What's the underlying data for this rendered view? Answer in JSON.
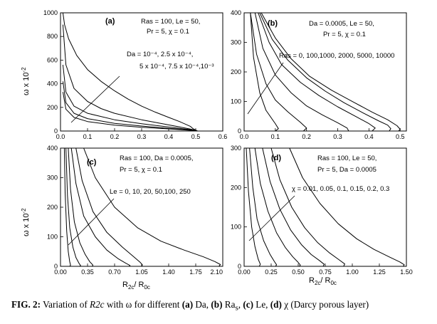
{
  "figure": {
    "caption_prefix": "FIG. 2:",
    "caption_text_1": "Variation of",
    "caption_var": "R2c",
    "caption_text_2": "with",
    "caption_omega": "ω",
    "caption_text_3": "for different",
    "caption_a": "(a)",
    "caption_a_txt": "Da,",
    "caption_b": "(b)",
    "caption_b_txt": "Ra",
    "caption_b_sub": "s",
    "caption_c": "(c)",
    "caption_c_txt": "Le,",
    "caption_d": "(d)",
    "caption_d_txt": "χ (Darcy porous layer)"
  },
  "axis_labels": {
    "ylabel_left": "ω x 10",
    "ylabel_exp": "-2",
    "xlabel": "R",
    "xlabel_sub1": "2c",
    "xlabel_mid": "/ R",
    "xlabel_sub2": "0c"
  },
  "chart_data": [
    {
      "type": "line",
      "panel": "(a)",
      "xlim": [
        0,
        0.6
      ],
      "ylim": [
        0,
        1000
      ],
      "xticks": [
        "0.0",
        "0.1",
        "0.2",
        "0.3",
        "0.4",
        "0.5",
        "0.6"
      ],
      "yticks": [
        "0",
        "200",
        "400",
        "600",
        "800",
        "1000"
      ],
      "params_line1": "Ras = 100, Le = 50,",
      "params_line2": "Pr = 5, χ = 0.1",
      "legend_line1": "Da = 10⁻⁴, 2.5 x 10⁻⁴,",
      "legend_line2": "5 x 10⁻⁴, 7.5 x 10⁻⁴,10⁻³",
      "series": [
        {
          "x": [
            0.009,
            0.015,
            0.03,
            0.06,
            0.1,
            0.15,
            0.2,
            0.25,
            0.3,
            0.35,
            0.4,
            0.44,
            0.48,
            0.49,
            0.5,
            0.505,
            0.5
          ],
          "y": [
            1000,
            900,
            780,
            640,
            520,
            420,
            340,
            270,
            210,
            160,
            115,
            80,
            40,
            20,
            8,
            2,
            0
          ]
        },
        {
          "x": [
            0.009,
            0.02,
            0.05,
            0.1,
            0.15,
            0.2,
            0.3,
            0.4,
            0.45,
            0.48,
            0.5,
            0.505,
            0.5
          ],
          "y": [
            900,
            560,
            360,
            250,
            190,
            150,
            95,
            52,
            30,
            16,
            6,
            2,
            0
          ]
        },
        {
          "x": [
            0.009,
            0.02,
            0.05,
            0.1,
            0.2,
            0.3,
            0.4,
            0.45,
            0.48,
            0.5,
            0.505,
            0.5
          ],
          "y": [
            560,
            330,
            210,
            150,
            95,
            62,
            34,
            20,
            12,
            5,
            2,
            0
          ]
        },
        {
          "x": [
            0.009,
            0.02,
            0.05,
            0.1,
            0.2,
            0.3,
            0.4,
            0.45,
            0.48,
            0.5,
            0.505,
            0.5
          ],
          "y": [
            420,
            240,
            150,
            105,
            65,
            42,
            23,
            14,
            8,
            4,
            1,
            0
          ]
        },
        {
          "x": [
            0.009,
            0.02,
            0.05,
            0.1,
            0.2,
            0.3,
            0.4,
            0.45,
            0.48,
            0.5,
            0.505,
            0.5
          ],
          "y": [
            330,
            185,
            115,
            80,
            50,
            32,
            18,
            11,
            6,
            3,
            1,
            0
          ]
        }
      ]
    },
    {
      "type": "line",
      "panel": "(b)",
      "xlim": [
        0,
        0.52
      ],
      "ylim": [
        0,
        400
      ],
      "xticks": [
        "0.0",
        "0.1",
        "0.2",
        "0.3",
        "0.4",
        "0.5"
      ],
      "yticks": [
        "0",
        "100",
        "200",
        "300",
        "400"
      ],
      "params_line1": "Da = 0.0005, Le = 50,",
      "params_line2": "Pr = 5, χ = 0.1",
      "legend_line1": "Ras = 0, 100,1000, 2000, 5000, 10000",
      "series": [
        {
          "x": [
            0.02,
            0.03,
            0.05,
            0.07,
            0.1,
            0.11,
            0.1
          ],
          "y": [
            400,
            250,
            130,
            70,
            25,
            8,
            0
          ]
        },
        {
          "x": [
            0.02,
            0.04,
            0.07,
            0.1,
            0.14,
            0.18,
            0.2,
            0.19
          ],
          "y": [
            400,
            260,
            160,
            105,
            65,
            30,
            10,
            0
          ]
        },
        {
          "x": [
            0.035,
            0.06,
            0.1,
            0.15,
            0.2,
            0.25,
            0.3,
            0.33,
            0.335
          ],
          "y": [
            400,
            280,
            190,
            130,
            85,
            55,
            28,
            10,
            0
          ]
        },
        {
          "x": [
            0.045,
            0.08,
            0.12,
            0.18,
            0.24,
            0.3,
            0.36,
            0.4,
            0.42,
            0.41
          ],
          "y": [
            400,
            300,
            225,
            165,
            120,
            82,
            48,
            25,
            10,
            0
          ]
        },
        {
          "x": [
            0.05,
            0.09,
            0.14,
            0.2,
            0.26,
            0.32,
            0.38,
            0.43,
            0.46,
            0.47,
            0.465
          ],
          "y": [
            400,
            310,
            240,
            180,
            135,
            96,
            62,
            35,
            20,
            8,
            0
          ]
        },
        {
          "x": [
            0.055,
            0.1,
            0.15,
            0.21,
            0.28,
            0.35,
            0.41,
            0.46,
            0.49,
            0.5,
            0.495
          ],
          "y": [
            400,
            315,
            245,
            185,
            138,
            98,
            64,
            38,
            18,
            6,
            0
          ]
        }
      ]
    },
    {
      "type": "line",
      "panel": "(c)",
      "xlim": [
        0,
        2.1
      ],
      "ylim": [
        0,
        400
      ],
      "xticks": [
        "0.00",
        "0.35",
        "0.70",
        "1.05",
        "1.40",
        "1.75",
        "2.10"
      ],
      "yticks": [
        "0",
        "100",
        "200",
        "300",
        "400"
      ],
      "params_line1": "Ras = 100, Da = 0.0005,",
      "params_line2": "Pr = 5, χ = 0.1",
      "legend_line1": "Le = 0, 10, 20, 50,100, 250",
      "series": [
        {
          "x": [
            0.05,
            0.06,
            0.08,
            0.1,
            0.12,
            0.13,
            0.12
          ],
          "y": [
            400,
            250,
            120,
            50,
            15,
            4,
            0
          ]
        },
        {
          "x": [
            0.07,
            0.09,
            0.12,
            0.16,
            0.2,
            0.24,
            0.26,
            0.25
          ],
          "y": [
            400,
            240,
            130,
            65,
            30,
            10,
            3,
            0
          ]
        },
        {
          "x": [
            0.1,
            0.13,
            0.18,
            0.25,
            0.32,
            0.38,
            0.42,
            0.41
          ],
          "y": [
            400,
            260,
            150,
            80,
            40,
            15,
            4,
            0
          ]
        },
        {
          "x": [
            0.14,
            0.2,
            0.3,
            0.45,
            0.6,
            0.75,
            0.85,
            0.9,
            0.89
          ],
          "y": [
            400,
            280,
            170,
            100,
            55,
            25,
            10,
            3,
            0
          ]
        },
        {
          "x": [
            0.2,
            0.28,
            0.42,
            0.6,
            0.8,
            0.95,
            1.03,
            1.06,
            1.05
          ],
          "y": [
            400,
            290,
            185,
            115,
            65,
            32,
            14,
            5,
            0
          ]
        },
        {
          "x": [
            0.3,
            0.45,
            0.7,
            1.0,
            1.3,
            1.6,
            1.85,
            2.0,
            2.07,
            2.05
          ],
          "y": [
            400,
            300,
            200,
            130,
            85,
            55,
            32,
            16,
            6,
            0
          ]
        }
      ]
    },
    {
      "type": "line",
      "panel": "(d)",
      "xlim": [
        0,
        1.5
      ],
      "ylim": [
        0,
        300
      ],
      "xticks": [
        "0.00",
        "0.25",
        "0.50",
        "0.75",
        "1.00",
        "1.25",
        "1.50"
      ],
      "yticks": [
        "0",
        "100",
        "200",
        "300"
      ],
      "params_line1": "Ras = 100, Le = 50,",
      "params_line2": "Pr = 5, Da = 0.0005",
      "legend_line1": "χ = 0.01, 0.05, 0.1, 0.15, 0.2, 0.3",
      "series": [
        {
          "x": [
            0.02,
            0.04,
            0.07,
            0.1,
            0.13,
            0.15,
            0.14
          ],
          "y": [
            300,
            190,
            100,
            50,
            18,
            5,
            0
          ]
        },
        {
          "x": [
            0.05,
            0.08,
            0.12,
            0.18,
            0.24,
            0.28,
            0.3,
            0.29
          ],
          "y": [
            300,
            200,
            120,
            65,
            30,
            12,
            4,
            0
          ]
        },
        {
          "x": [
            0.1,
            0.15,
            0.22,
            0.3,
            0.38,
            0.45,
            0.5,
            0.52,
            0.51
          ],
          "y": [
            300,
            210,
            140,
            85,
            48,
            24,
            10,
            3,
            0
          ]
        },
        {
          "x": [
            0.17,
            0.24,
            0.33,
            0.43,
            0.53,
            0.62,
            0.7,
            0.74,
            0.73
          ],
          "y": [
            300,
            215,
            145,
            92,
            55,
            30,
            14,
            5,
            0
          ]
        },
        {
          "x": [
            0.25,
            0.33,
            0.44,
            0.56,
            0.68,
            0.79,
            0.88,
            0.93,
            0.92
          ],
          "y": [
            300,
            220,
            150,
            98,
            60,
            34,
            16,
            6,
            0
          ]
        },
        {
          "x": [
            0.42,
            0.54,
            0.7,
            0.87,
            1.04,
            1.2,
            1.34,
            1.44,
            1.48,
            1.47
          ],
          "y": [
            300,
            225,
            160,
            108,
            70,
            43,
            24,
            11,
            4,
            0
          ]
        }
      ]
    }
  ]
}
